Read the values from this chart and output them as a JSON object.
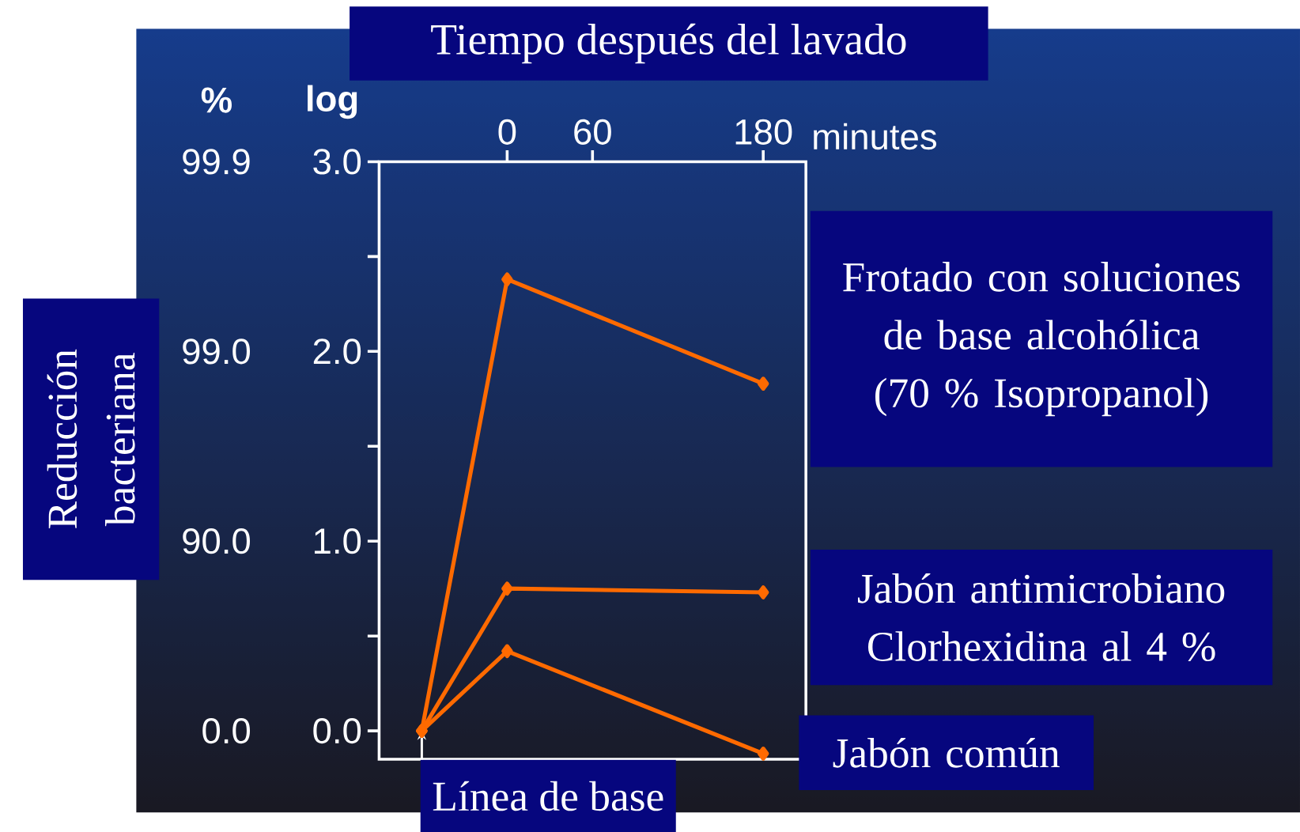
{
  "chart_data": {
    "type": "line",
    "title": "Tiempo después del lavado",
    "xlabel": "minutes",
    "ylabel": "log",
    "annotations": [
      "Reducción bacteriana",
      {
        "text": "Línea de base",
        "x": -60,
        "y": 0
      },
      "%",
      "99.9",
      "99.0",
      "90.0",
      "0.0"
    ],
    "x": [
      -60,
      0,
      180
    ],
    "series": [
      {
        "name": "Frotado con soluciones de base alcohólica (70 % Isopropanol)",
        "color": "#ff6a00",
        "values": [
          0,
          2.38,
          1.83
        ]
      },
      {
        "name": "Jabón antimicrobiano Clorhexidina al 4 %",
        "color": "#ff6a00",
        "values": [
          0,
          0.75,
          0.73
        ]
      },
      {
        "name": "Jabón común",
        "color": "#ff6a00",
        "values": [
          0,
          0.42,
          -0.12
        ]
      }
    ],
    "xlim": [
      -90,
      210
    ],
    "xticks": [
      0,
      60,
      180
    ],
    "ylim": [
      -0.15,
      3.0
    ],
    "yticks": [
      {
        "value": 0,
        "label": "0.0"
      },
      {
        "value": 0.5,
        "label": null
      },
      {
        "value": 1,
        "label": "1.0"
      },
      {
        "value": 1.5,
        "label": null
      },
      {
        "value": 2,
        "label": "2.0"
      },
      {
        "value": 2.5,
        "label": null
      },
      {
        "value": 3,
        "label": "3.0"
      }
    ],
    "marker": "diamond",
    "line_style": "solid"
  }
}
